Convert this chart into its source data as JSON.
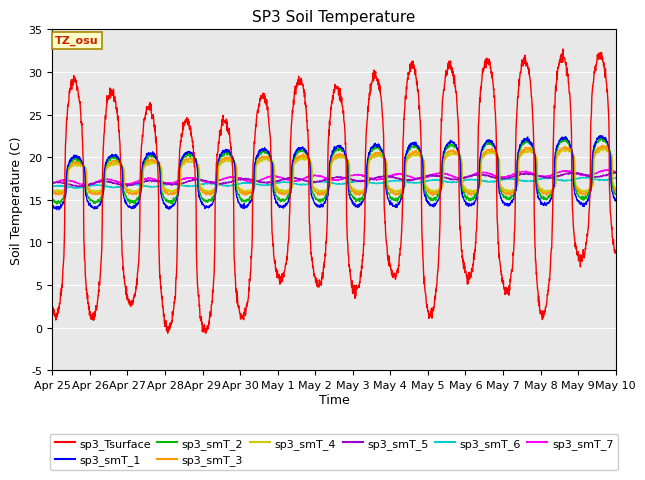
{
  "title": "SP3 Soil Temperature",
  "ylabel": "Soil Temperature (C)",
  "xlabel": "Time",
  "ylim": [
    -5,
    35
  ],
  "annotation": "TZ_osu",
  "bg_color": "#e8e8e8",
  "series_colors": {
    "sp3_Tsurface": "#ff0000",
    "sp3_smT_1": "#0000ff",
    "sp3_smT_2": "#00bb00",
    "sp3_smT_3": "#ff9900",
    "sp3_smT_4": "#cccc00",
    "sp3_smT_5": "#9900cc",
    "sp3_smT_6": "#00cccc",
    "sp3_smT_7": "#ff00ff"
  },
  "xtick_labels": [
    "Apr 25",
    "Apr 26",
    "Apr 27",
    "Apr 28",
    "Apr 29",
    "Apr 30",
    "May 1",
    "May 2",
    "May 3",
    "May 4",
    "May 5",
    "May 6",
    "May 7",
    "May 8",
    "May 9",
    "May 10"
  ],
  "ytick_labels": [
    -5,
    0,
    5,
    10,
    15,
    20,
    25,
    30,
    35
  ],
  "title_fontsize": 11,
  "axis_fontsize": 9,
  "tick_fontsize": 8
}
